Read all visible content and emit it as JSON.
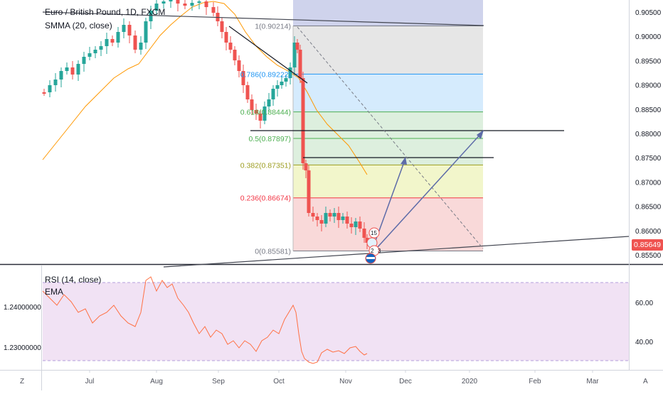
{
  "chart_data": {
    "type": "candlestick",
    "title": "Euro / British Pound, 1D, FXCM",
    "indicator": "SMMA (20, close)",
    "ylim": [
      0.8532,
      0.9078
    ],
    "x_labels": [
      "Jul",
      "Aug",
      "Sep",
      "Oct",
      "Nov",
      "Dec",
      "2020",
      "Feb",
      "Mar"
    ],
    "y_ticks": [
      "0.90500",
      "0.90000",
      "0.89500",
      "0.89000",
      "0.88500",
      "0.88000",
      "0.87500",
      "0.87000",
      "0.86500",
      "0.86000",
      "0.85500"
    ],
    "last_price": "0.85649",
    "fib_levels": [
      {
        "label": "1(0.90214)",
        "value": 0.90214,
        "color": "#787b86"
      },
      {
        "label": "0.786(0.89222)",
        "value": 0.89222,
        "color": "#2196f3"
      },
      {
        "label": "0.618(0.88444)",
        "value": 0.88444,
        "color": "#4caf50"
      },
      {
        "label": "0.5(0.87897)",
        "value": 0.87897,
        "color": "#4caf50"
      },
      {
        "label": "0.382(0.87351)",
        "value": 0.87351,
        "color": "#9c9c1f"
      },
      {
        "label": "0.236(0.86674)",
        "value": 0.86674,
        "color": "#f23645"
      },
      {
        "label": "0(0.85581)",
        "value": 0.85581,
        "color": "#787b86"
      }
    ],
    "bubble_labels": [
      "15",
      "2",
      "3"
    ]
  },
  "rsi": {
    "title": "RSI (14, close)",
    "ema": "EMA",
    "left_ticks": [
      "1.24000000",
      "1.23000000"
    ],
    "right_ticks": [
      "60.00",
      "40.00"
    ]
  },
  "bottom": {
    "zoom_left": "Z",
    "auto": "A"
  },
  "colors": {
    "up": "#26a69a",
    "down": "#ef5350",
    "smma": "#ff9800",
    "rsi_band": "#e1bee7"
  }
}
